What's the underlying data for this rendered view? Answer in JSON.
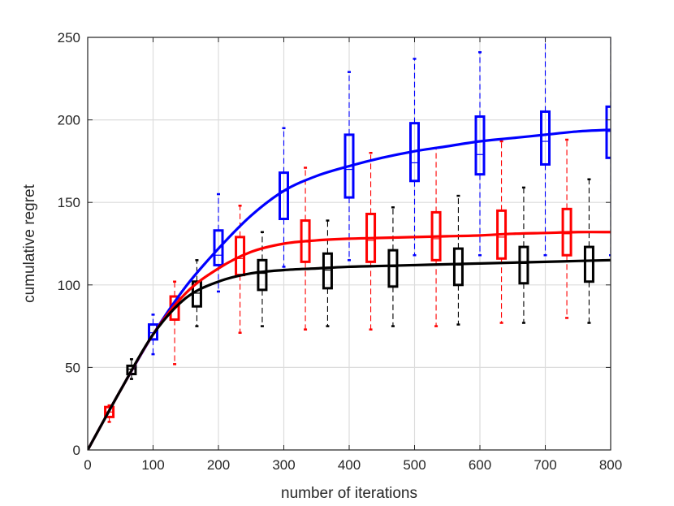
{
  "chart_data": {
    "type": "line",
    "xlabel": "number of iterations",
    "ylabel": "cumulative regret",
    "xlim": [
      0,
      800
    ],
    "ylim": [
      0,
      250
    ],
    "xticks": [
      0,
      100,
      200,
      300,
      400,
      500,
      600,
      700,
      800
    ],
    "yticks": [
      0,
      50,
      100,
      150,
      200,
      250
    ],
    "grid": true,
    "series": [
      {
        "color": "#0000ff",
        "curve": {
          "x": [
            0,
            50,
            100,
            150,
            200,
            250,
            300,
            350,
            400,
            450,
            500,
            550,
            600,
            650,
            700,
            750,
            800
          ],
          "y": [
            0,
            36,
            70,
            99,
            122,
            142,
            157,
            166,
            172,
            177,
            181,
            184,
            187,
            189,
            191,
            193,
            194
          ]
        },
        "boxes": [
          {
            "x": 100,
            "wlo": 58,
            "q1": 67,
            "med": 71,
            "q3": 76,
            "whi": 82
          },
          {
            "x": 200,
            "wlo": 96,
            "q1": 112,
            "med": 118,
            "q3": 133,
            "whi": 155
          },
          {
            "x": 300,
            "wlo": 111,
            "q1": 140,
            "med": 157,
            "q3": 168,
            "whi": 195
          },
          {
            "x": 400,
            "wlo": 115,
            "q1": 153,
            "med": 170,
            "q3": 191,
            "whi": 229
          },
          {
            "x": 500,
            "wlo": 118,
            "q1": 163,
            "med": 174,
            "q3": 198,
            "whi": 237
          },
          {
            "x": 600,
            "wlo": 118,
            "q1": 167,
            "med": 179,
            "q3": 202,
            "whi": 241
          },
          {
            "x": 700,
            "wlo": 118,
            "q1": 173,
            "med": 187,
            "q3": 205,
            "whi": 252
          },
          {
            "x": 800,
            "wlo": 118,
            "q1": 177,
            "med": 193,
            "q3": 208,
            "whi": 260
          }
        ]
      },
      {
        "color": "#ff0000",
        "curve": {
          "x": [
            0,
            50,
            100,
            150,
            200,
            250,
            300,
            350,
            400,
            450,
            500,
            550,
            600,
            650,
            700,
            750,
            800
          ],
          "y": [
            0,
            36,
            70,
            95,
            110,
            120,
            125,
            127,
            128,
            128.5,
            129,
            129.5,
            130,
            131,
            131.5,
            132,
            132
          ]
        },
        "boxes": [
          {
            "x": 33,
            "wlo": 17,
            "q1": 20,
            "med": 23,
            "q3": 26,
            "whi": 27
          },
          {
            "x": 133,
            "wlo": 52,
            "q1": 79,
            "med": 87,
            "q3": 93,
            "whi": 102
          },
          {
            "x": 233,
            "wlo": 71,
            "q1": 106,
            "med": 116,
            "q3": 129,
            "whi": 148
          },
          {
            "x": 333,
            "wlo": 73,
            "q1": 114,
            "med": 126,
            "q3": 139,
            "whi": 171
          },
          {
            "x": 433,
            "wlo": 73,
            "q1": 114,
            "med": 127,
            "q3": 143,
            "whi": 180
          },
          {
            "x": 533,
            "wlo": 75,
            "q1": 115,
            "med": 128,
            "q3": 144,
            "whi": 183
          },
          {
            "x": 633,
            "wlo": 77,
            "q1": 116,
            "med": 129,
            "q3": 145,
            "whi": 187
          },
          {
            "x": 733,
            "wlo": 80,
            "q1": 118,
            "med": 131,
            "q3": 146,
            "whi": 188
          }
        ]
      },
      {
        "color": "#000000",
        "curve": {
          "x": [
            0,
            50,
            100,
            150,
            200,
            250,
            300,
            350,
            400,
            450,
            500,
            550,
            600,
            650,
            700,
            750,
            800
          ],
          "y": [
            0,
            36,
            70,
            92,
            102,
            107,
            109,
            110,
            111,
            111.5,
            112,
            112.5,
            113,
            113.5,
            114,
            114.5,
            115
          ]
        },
        "boxes": [
          {
            "x": 67,
            "wlo": 43,
            "q1": 46,
            "med": 49,
            "q3": 51,
            "whi": 55
          },
          {
            "x": 167,
            "wlo": 75,
            "q1": 87,
            "med": 95,
            "q3": 102,
            "whi": 115
          },
          {
            "x": 267,
            "wlo": 75,
            "q1": 97,
            "med": 107,
            "q3": 115,
            "whi": 132
          },
          {
            "x": 367,
            "wlo": 75,
            "q1": 98,
            "med": 109,
            "q3": 119,
            "whi": 139
          },
          {
            "x": 467,
            "wlo": 75,
            "q1": 99,
            "med": 111,
            "q3": 121,
            "whi": 147
          },
          {
            "x": 567,
            "wlo": 76,
            "q1": 100,
            "med": 112,
            "q3": 122,
            "whi": 154
          },
          {
            "x": 667,
            "wlo": 77,
            "q1": 101,
            "med": 113,
            "q3": 123,
            "whi": 159
          },
          {
            "x": 767,
            "wlo": 77,
            "q1": 102,
            "med": 115,
            "q3": 123,
            "whi": 164
          }
        ]
      }
    ]
  }
}
